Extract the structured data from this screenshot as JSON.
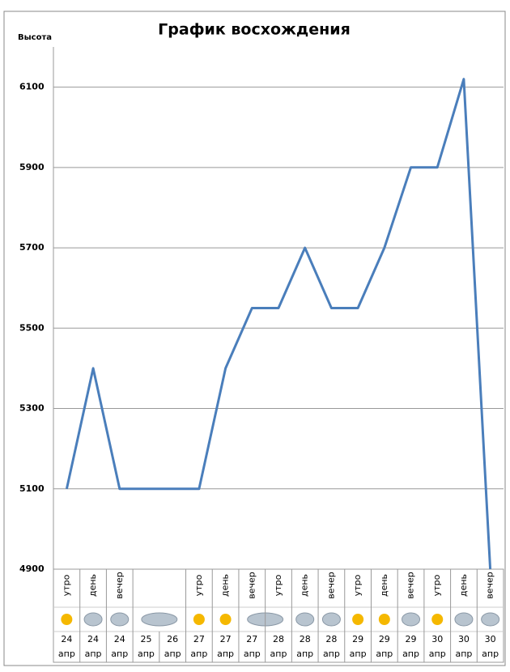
{
  "chart_data": {
    "type": "line",
    "title": "График восхождения",
    "y_label": "Высота",
    "categories": [
      "утро",
      "день",
      "вечер",
      null,
      null,
      "утро",
      "день",
      "вечер",
      "утро",
      "день",
      "вечер",
      "утро",
      "день",
      "вечер",
      "утро",
      "день",
      "вечер"
    ],
    "dates": [
      "24",
      "24",
      "24",
      "25",
      "26",
      "27",
      "27",
      "27",
      "28",
      "28",
      "28",
      "29",
      "29",
      "29",
      "30",
      "30",
      "30"
    ],
    "months": [
      "апр",
      "апр",
      "апр",
      "апр",
      "апр",
      "апр",
      "апр",
      "апр",
      "апр",
      "апр",
      "апр",
      "апр",
      "апр",
      "апр",
      "апр",
      "апр",
      "апр"
    ],
    "values": [
      5100,
      5400,
      5100,
      5100,
      5100,
      5100,
      5400,
      5550,
      5550,
      5700,
      5550,
      5550,
      5700,
      5900,
      5900,
      6120,
      4900
    ],
    "color": "#4a7ebb",
    "ylim": [
      4900,
      6200
    ],
    "yticks": [
      4900,
      5100,
      5300,
      5500,
      5700,
      5900,
      6100
    ],
    "grid": true
  }
}
